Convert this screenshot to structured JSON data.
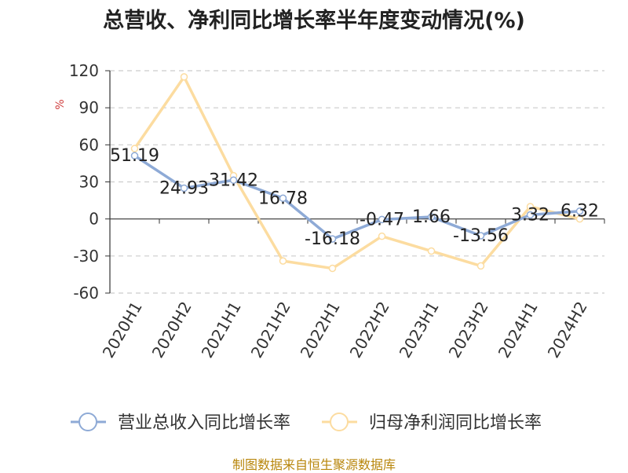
{
  "chart_data": {
    "type": "line",
    "title": "总营收、净利同比增长率半年度变动情况(%)",
    "ylabel": "%",
    "categories": [
      "2020H1",
      "2020H2",
      "2021H1",
      "2021H2",
      "2022H1",
      "2022H2",
      "2023H1",
      "2023H2",
      "2024H1",
      "2024H2"
    ],
    "ylim": [
      -60,
      120
    ],
    "yticks": [
      120,
      90,
      60,
      30,
      0,
      -30,
      -60
    ],
    "grid": true,
    "legend_position": "bottom",
    "series": [
      {
        "name": "营业总收入同比增长率",
        "color": "#8eaad6",
        "values": [
          51.19,
          24.93,
          31.42,
          16.78,
          -16.18,
          -0.47,
          1.66,
          -13.56,
          3.32,
          6.32
        ],
        "labels": [
          "51.19",
          "24.93",
          "31.42",
          "16.78",
          "-16.18",
          "-0.47",
          "1.66",
          "-13.56",
          "3.32",
          "6.32"
        ]
      },
      {
        "name": "归母净利润同比增长率",
        "color": "#fcdca0",
        "values": [
          57,
          115,
          35,
          -34,
          -40,
          -14,
          -26,
          -38,
          10,
          0
        ]
      }
    ]
  },
  "source_text": "制图数据来自恒生聚源数据库"
}
